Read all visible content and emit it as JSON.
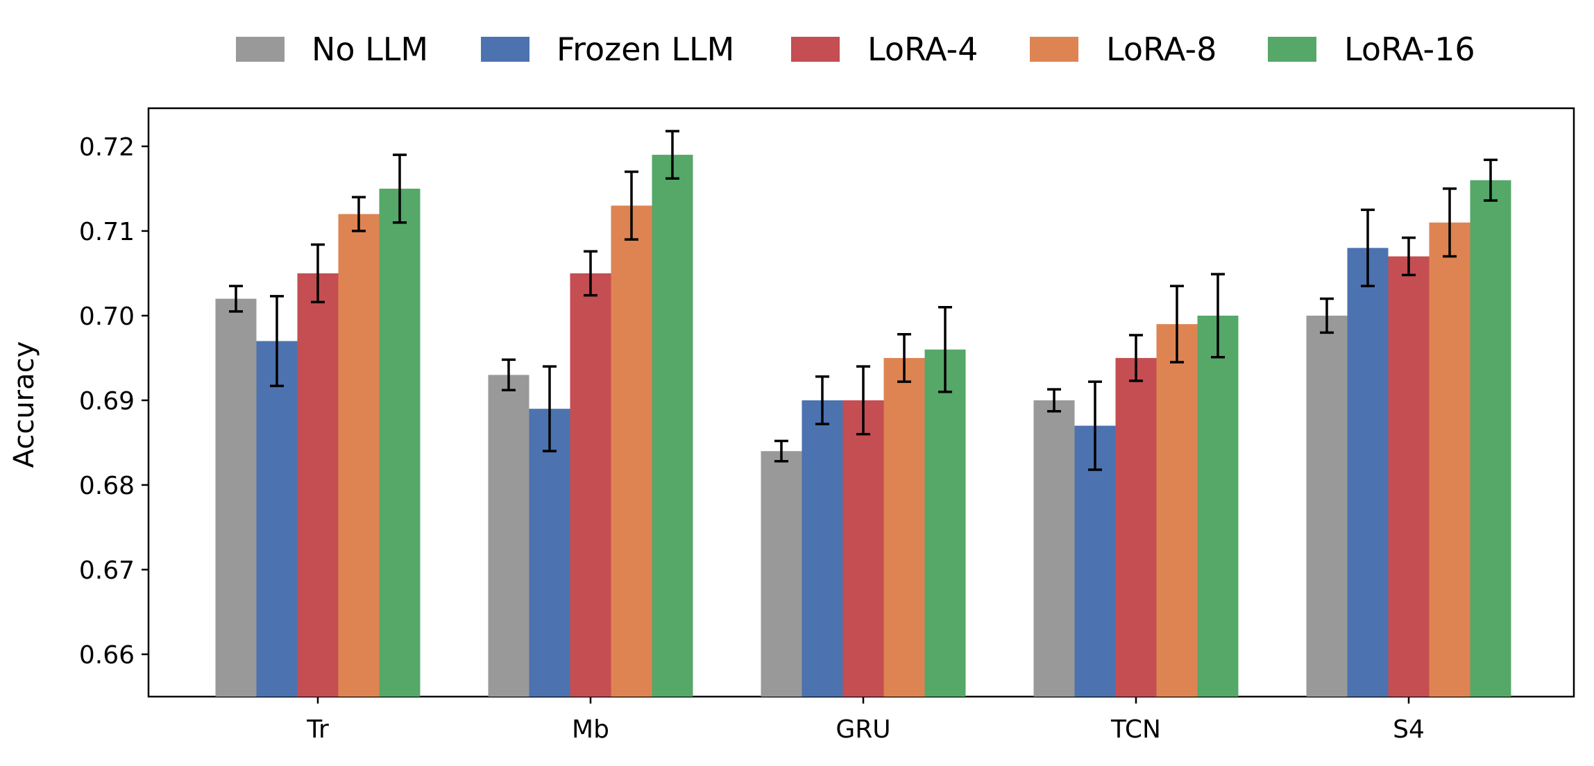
{
  "chart_data": {
    "type": "bar",
    "title": "",
    "xlabel": "",
    "ylabel": "Accuracy",
    "categories": [
      "Tr",
      "Mb",
      "GRU",
      "TCN",
      "S4"
    ],
    "ylim": [
      0.655,
      0.7245
    ],
    "yticks": [
      0.66,
      0.67,
      0.68,
      0.69,
      0.7,
      0.71,
      0.72
    ],
    "ytick_labels": [
      "0.66",
      "0.67",
      "0.68",
      "0.69",
      "0.70",
      "0.71",
      "0.72"
    ],
    "grid": false,
    "legend_position": "top-center",
    "series": [
      {
        "name": "No LLM",
        "color": "#999999",
        "values": [
          0.702,
          0.693,
          0.684,
          0.69,
          0.7
        ],
        "errors": [
          0.0015,
          0.0018,
          0.0012,
          0.0013,
          0.002
        ]
      },
      {
        "name": "Frozen LLM",
        "color": "#4c72b0",
        "values": [
          0.697,
          0.689,
          0.69,
          0.687,
          0.708
        ],
        "errors": [
          0.0053,
          0.005,
          0.0028,
          0.0052,
          0.0045
        ]
      },
      {
        "name": "LoRA-4",
        "color": "#c44e52",
        "values": [
          0.705,
          0.705,
          0.69,
          0.695,
          0.707
        ],
        "errors": [
          0.0034,
          0.0026,
          0.004,
          0.0027,
          0.0022
        ]
      },
      {
        "name": "LoRA-8",
        "color": "#dd8452",
        "values": [
          0.712,
          0.713,
          0.695,
          0.699,
          0.711
        ],
        "errors": [
          0.002,
          0.004,
          0.0028,
          0.0045,
          0.004
        ]
      },
      {
        "name": "LoRA-16",
        "color": "#55a868",
        "values": [
          0.715,
          0.719,
          0.696,
          0.7,
          0.716
        ],
        "errors": [
          0.004,
          0.0028,
          0.005,
          0.0049,
          0.0024
        ]
      }
    ]
  }
}
